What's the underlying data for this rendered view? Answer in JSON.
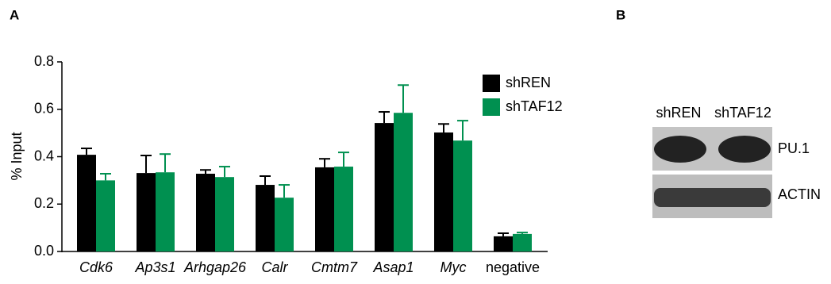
{
  "panel_labels": [
    "A",
    "B"
  ],
  "chart_data": {
    "type": "bar",
    "y_label": "% Input",
    "categories": [
      "Cdk6",
      "Ap3s1",
      "Arhgap26",
      "Calr",
      "Cmtm7",
      "Asap1",
      "Myc",
      "negative"
    ],
    "series": [
      {
        "name": "shREN",
        "color": "#000000",
        "values": [
          0.408,
          0.331,
          0.328,
          0.281,
          0.355,
          0.542,
          0.502,
          0.064
        ],
        "errors": [
          0.027,
          0.074,
          0.016,
          0.037,
          0.036,
          0.047,
          0.036,
          0.013
        ]
      },
      {
        "name": "shTAF12",
        "color": "#009050",
        "values": [
          0.3,
          0.334,
          0.314,
          0.227,
          0.358,
          0.585,
          0.468,
          0.074
        ],
        "errors": [
          0.028,
          0.077,
          0.044,
          0.054,
          0.06,
          0.117,
          0.084,
          0.006
        ]
      }
    ],
    "ylim": [
      0,
      0.8
    ],
    "yticks": [
      {
        "value": 0,
        "label": "0.0"
      },
      0.2,
      0.4,
      0.6,
      0.8
    ],
    "grid": false,
    "legend": "upper right"
  },
  "blot": {
    "columns": [
      "shREN",
      "shTAF12"
    ],
    "rows": [
      "PU.1",
      "ACTIN"
    ]
  }
}
